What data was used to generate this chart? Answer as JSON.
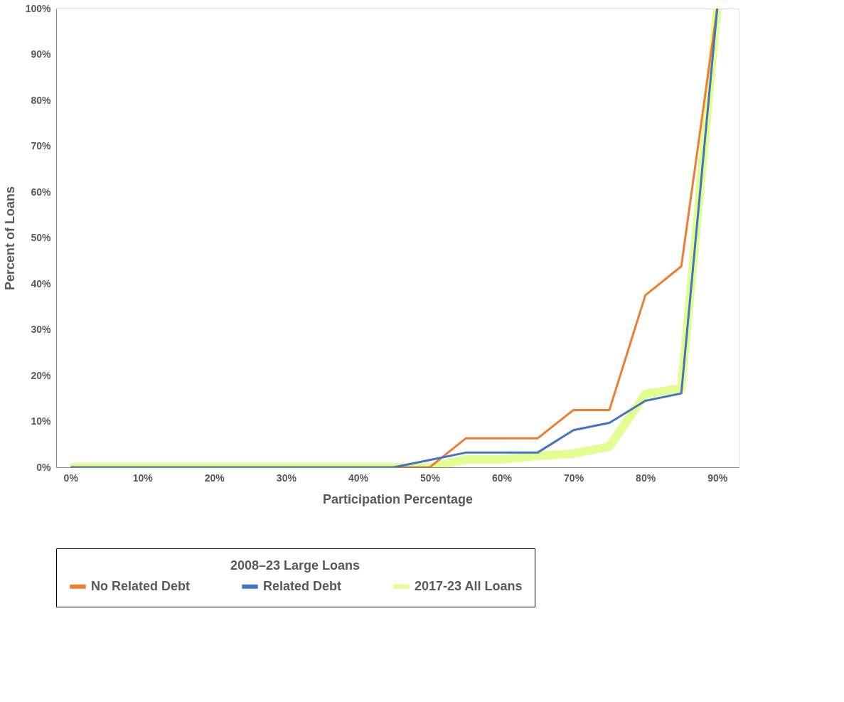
{
  "chart_data": {
    "type": "line",
    "xlabel": "Participation Percentage",
    "ylabel": "Percent of Loans",
    "legend_title": "2008–23 Large Loans",
    "x": [
      0,
      5,
      10,
      15,
      20,
      25,
      30,
      35,
      40,
      45,
      50,
      55,
      60,
      65,
      70,
      75,
      80,
      85,
      90
    ],
    "series": [
      {
        "name": "No Related Debt",
        "color": "#ed7d31",
        "values": [
          null,
          null,
          null,
          null,
          null,
          null,
          null,
          null,
          null,
          0,
          0,
          6.3,
          6.3,
          6.3,
          12.5,
          12.5,
          37.5,
          43.8,
          100
        ]
      },
      {
        "name": "Related Debt",
        "color": "#4472c4",
        "values": [
          0,
          0,
          0,
          0,
          0,
          0,
          0,
          0,
          0,
          0,
          1.6,
          3.2,
          3.2,
          3.2,
          8.1,
          9.7,
          14.5,
          16.1,
          100
        ]
      },
      {
        "name": "2017-23 All Loans",
        "color": "#e2fe92",
        "values": [
          0,
          0,
          0,
          0,
          0,
          0,
          0,
          0,
          0,
          0,
          0,
          1.7,
          1.7,
          2.5,
          3,
          4.5,
          16,
          17.2,
          100
        ]
      }
    ],
    "xlim": [
      -2,
      93
    ],
    "ylim": [
      0,
      100
    ],
    "xticks": [
      {
        "value": 0,
        "label": "0%"
      },
      {
        "value": 10,
        "label": "10%"
      },
      {
        "value": 20,
        "label": "20%"
      },
      {
        "value": 30,
        "label": "30%"
      },
      {
        "value": 40,
        "label": "40%"
      },
      {
        "value": 50,
        "label": "50%"
      },
      {
        "value": 60,
        "label": "60%"
      },
      {
        "value": 70,
        "label": "70%"
      },
      {
        "value": 80,
        "label": "80%"
      },
      {
        "value": 90,
        "label": "90%"
      }
    ],
    "yticks": [
      {
        "value": 0,
        "label": "0%"
      },
      {
        "value": 10,
        "label": "10%"
      },
      {
        "value": 20,
        "label": "20%"
      },
      {
        "value": 30,
        "label": "30%"
      },
      {
        "value": 40,
        "label": "40%"
      },
      {
        "value": 50,
        "label": "50%"
      },
      {
        "value": 60,
        "label": "60%"
      },
      {
        "value": 70,
        "label": "70%"
      },
      {
        "value": 80,
        "label": "80%"
      },
      {
        "value": 90,
        "label": "90%"
      },
      {
        "value": 100,
        "label": "100%"
      }
    ],
    "grid": false,
    "legend": "bottom",
    "marker": "none",
    "line_style": "solid"
  }
}
